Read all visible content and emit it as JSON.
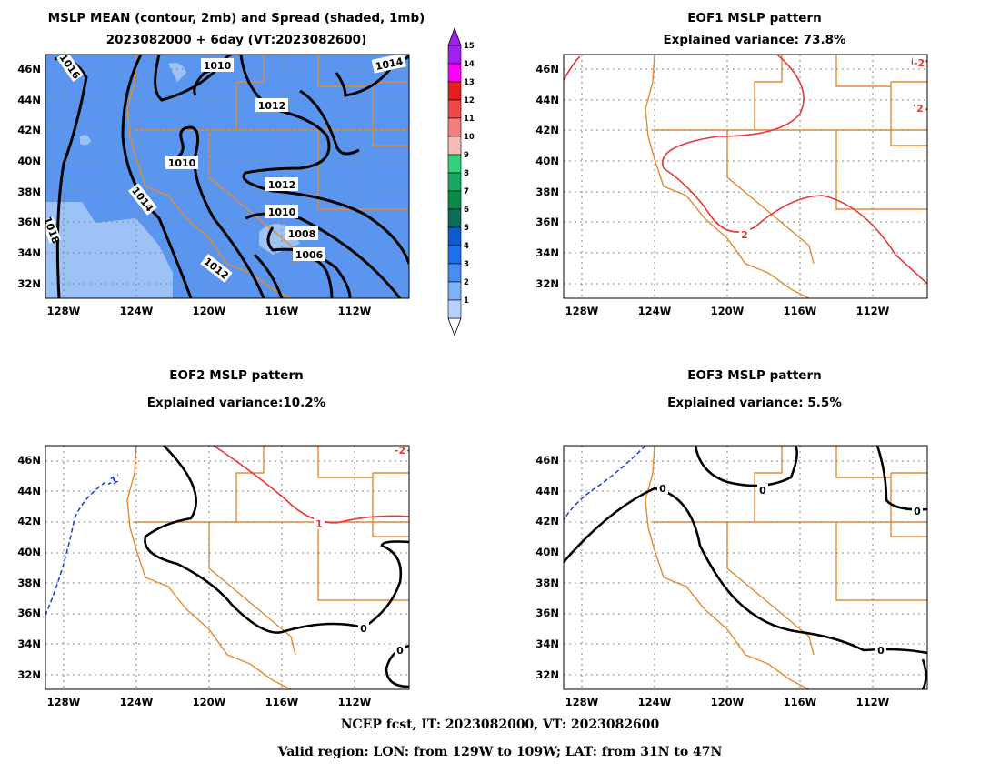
{
  "panels": {
    "p1": {
      "title1": "MSLP MEAN (contour, 2mb) and Spread (shaded, 1mb)",
      "title2": "2023082000 + 6day (VT:2023082600)",
      "labels": [
        "1016",
        "1010",
        "1014",
        "1012",
        "1010",
        "1012",
        "1014",
        "1010",
        "1008",
        "1006",
        "1012",
        "1018"
      ]
    },
    "p2": {
      "title1": "EOF1 MSLP pattern",
      "title2": "Explained variance: 73.8%",
      "labels": [
        "2",
        "2",
        "-2"
      ]
    },
    "p3": {
      "title1": "EOF2 MSLP pattern",
      "title2": "Explained variance:10.2%",
      "labels": [
        "-1",
        "1",
        "0",
        "0",
        "-2"
      ]
    },
    "p4": {
      "title1": "EOF3 MSLP pattern",
      "title2": "Explained variance: 5.5%",
      "labels": [
        "0",
        "0",
        "0",
        "0"
      ]
    }
  },
  "axes": {
    "lat_ticks": [
      "46N",
      "44N",
      "42N",
      "40N",
      "38N",
      "36N",
      "34N",
      "32N"
    ],
    "lon_ticks": [
      "128W",
      "124W",
      "120W",
      "116W",
      "112W"
    ]
  },
  "colorbar": {
    "labels": [
      "15",
      "14",
      "13",
      "12",
      "11",
      "10",
      "9",
      "8",
      "7",
      "6",
      "5",
      "4",
      "3",
      "2",
      "1"
    ],
    "colors": [
      "#a020f0",
      "#ff00ff",
      "#e61e1e",
      "#f04848",
      "#f47f7f",
      "#f9baba",
      "#32d27a",
      "#16a864",
      "#0a8c46",
      "#0a6e5a",
      "#0a5ad2",
      "#1e6ef0",
      "#4a8cf5",
      "#7fb0fa",
      "#b6d2ff"
    ]
  },
  "colors": {
    "border": "#e68a2e",
    "positive": "#e83838",
    "negative": "#1c3cdc",
    "zero": "#000000",
    "spread_base": "#5a96f0",
    "spread_low": "#9cc2f8"
  },
  "footer": {
    "line1": "NCEP fcst, IT: 2023082000, VT: 2023082600",
    "line2": "Valid region: LON: from 129W to 109W; LAT: from 31N to 47N"
  }
}
